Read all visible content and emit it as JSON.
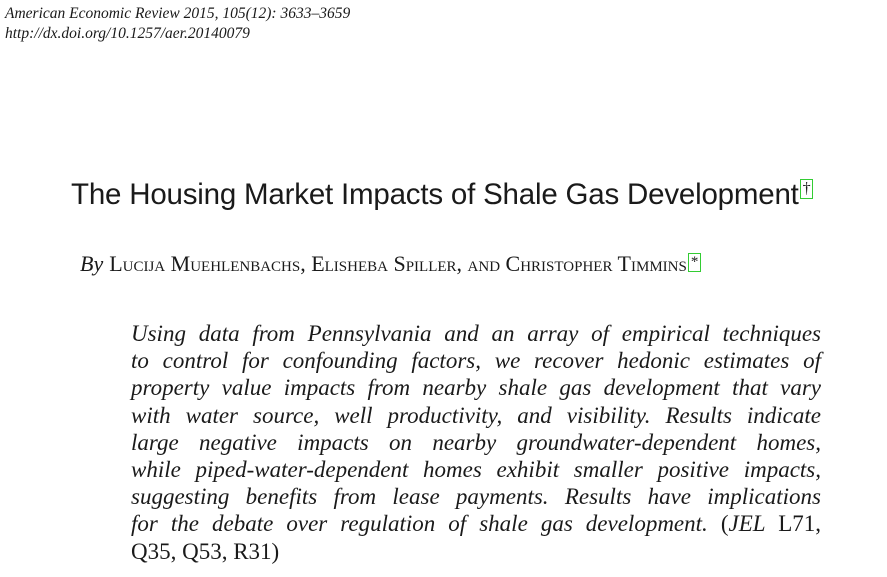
{
  "citation": {
    "journal_line": "American Economic Review 2015, 105(12): 3633–3659",
    "doi_line": "http://dx.doi.org/10.1257/aer.20140079"
  },
  "title": {
    "text": "The Housing Market Impacts of Shale Gas Development",
    "note_mark": "†"
  },
  "byline": {
    "by": "By",
    "authors": "Lucija Muehlenbachs, Elisheba Spiller, and Christopher Timmins",
    "note_mark": "*"
  },
  "abstract": {
    "lines": [
      "Using data from Pennsylvania and an array of empirical techniques",
      "to control for confounding factors, we recover hedonic estimates of",
      "property value impacts from nearby shale gas development that vary",
      "with water source, well productivity, and visibility. Results indicate",
      "large negative impacts on nearby groundwater-dependent homes,",
      "while piped-water-dependent homes exhibit smaller positive impacts,",
      "suggesting benefits from lease payments. Results have implications",
      "for the debate over regulation of shale gas development."
    ],
    "jel_open": "(",
    "jel_label": "JEL",
    "jel_first": "L71,",
    "jel_rest": "Q35, Q53, R31)"
  },
  "colors": {
    "link_box": "#33cc33",
    "text": "#1a1a1a"
  }
}
